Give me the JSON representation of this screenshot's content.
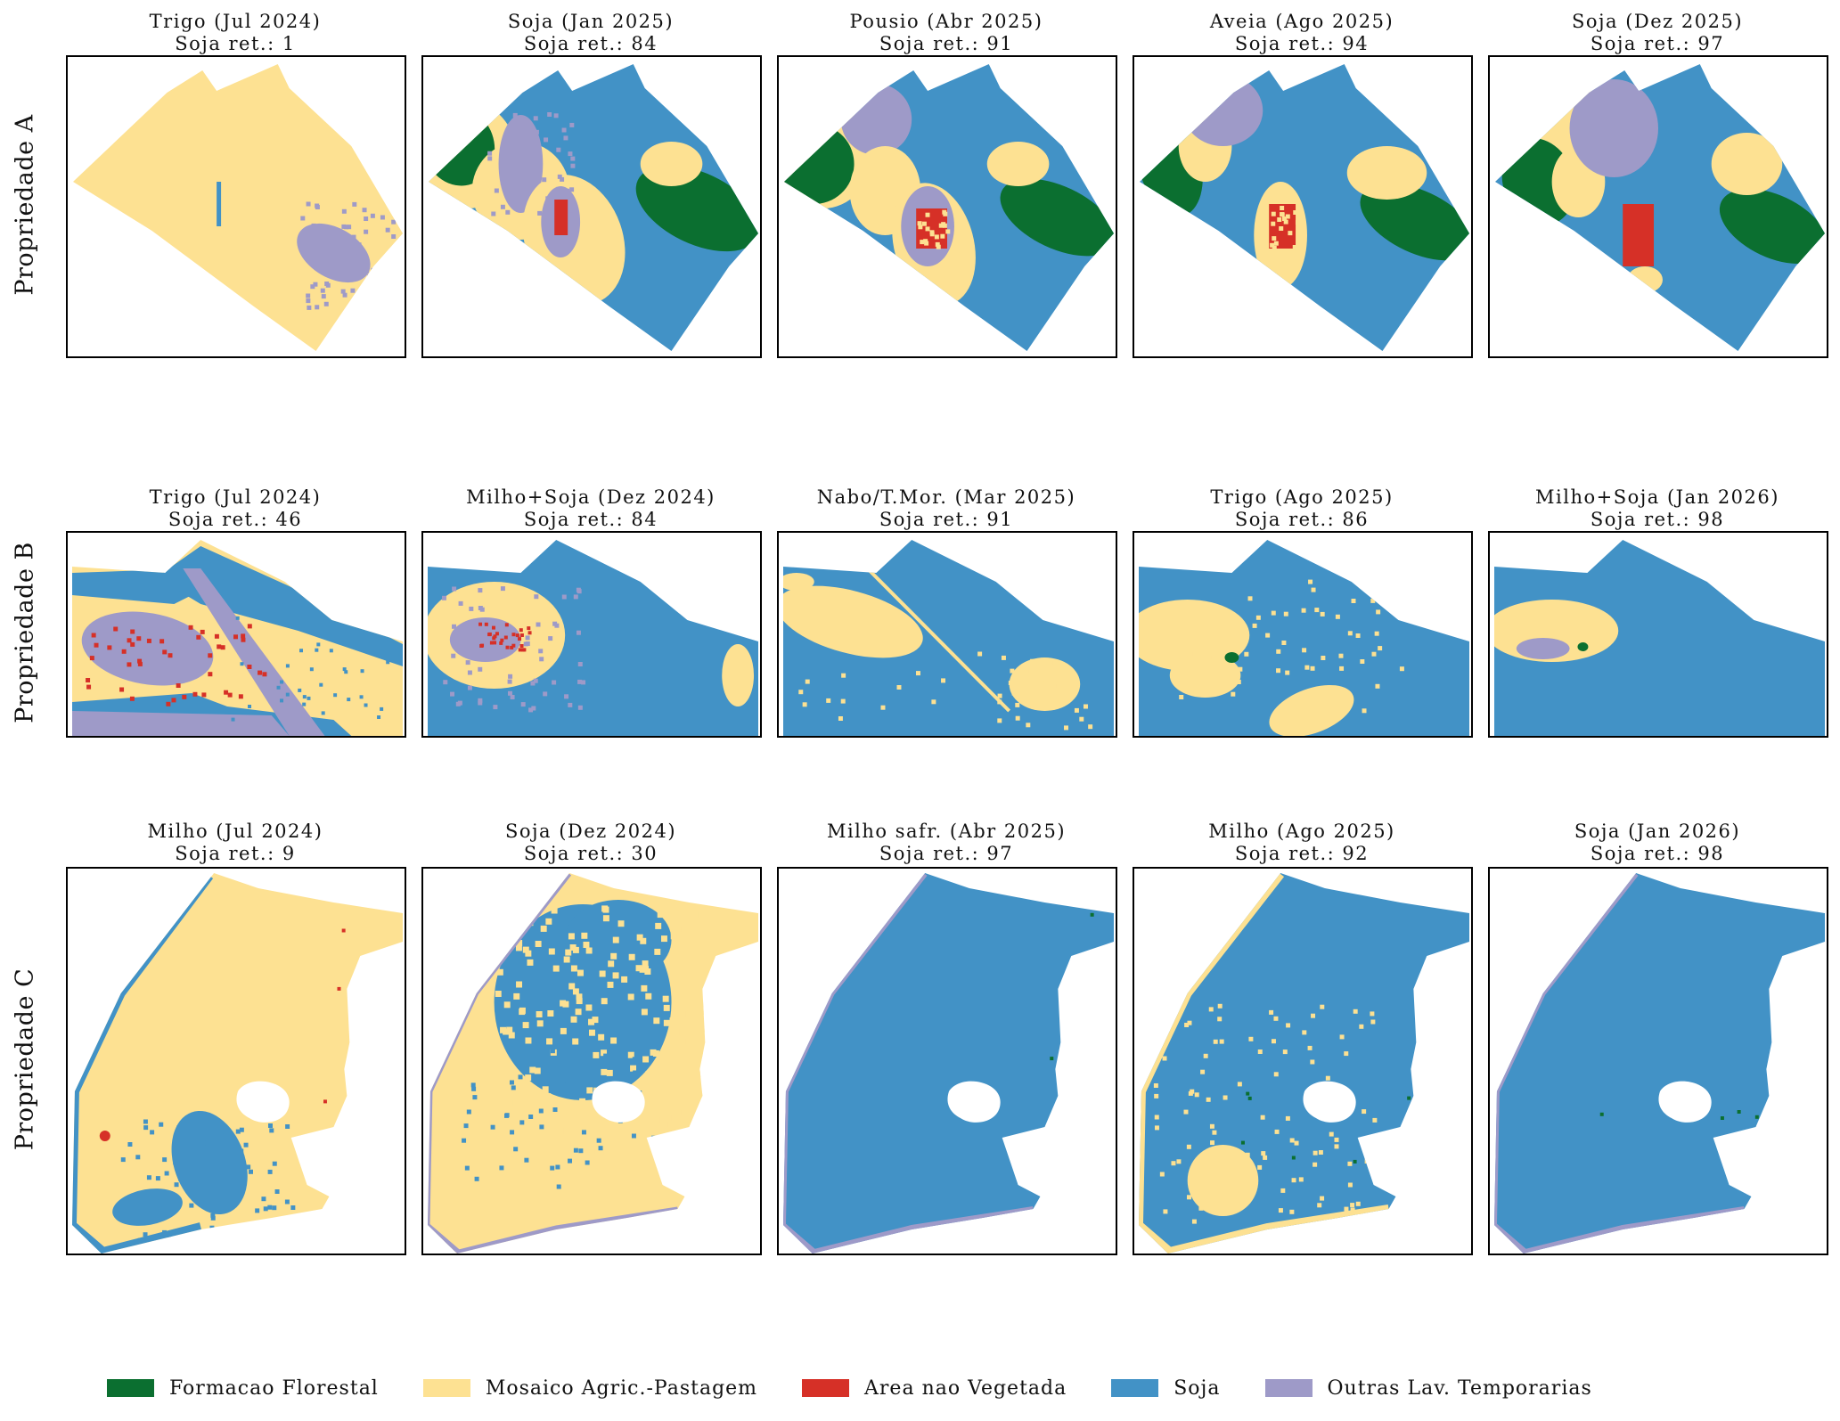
{
  "colors": {
    "floresta": "#0b6f30",
    "mosaico": "#fde192",
    "nao_vegetada": "#d63027",
    "soja": "#4292c6",
    "outras": "#9e9ac8"
  },
  "rows": [
    {
      "label": "Propriedade A",
      "shape": "A",
      "panels": [
        {
          "title": "Trigo (Jul 2024)",
          "sub": "Soja ret.: 1",
          "pattern": "A0"
        },
        {
          "title": "Soja (Jan 2025)",
          "sub": "Soja ret.: 84",
          "pattern": "A1"
        },
        {
          "title": "Pousio (Abr 2025)",
          "sub": "Soja ret.: 91",
          "pattern": "A2"
        },
        {
          "title": "Aveia (Ago 2025)",
          "sub": "Soja ret.: 94",
          "pattern": "A3"
        },
        {
          "title": "Soja (Dez 2025)",
          "sub": "Soja ret.: 97",
          "pattern": "A4"
        }
      ]
    },
    {
      "label": "Propriedade B",
      "shape": "B",
      "panels": [
        {
          "title": "Trigo (Jul 2024)",
          "sub": "Soja ret.: 46",
          "pattern": "B0"
        },
        {
          "title": "Milho+Soja (Dez 2024)",
          "sub": "Soja ret.: 84",
          "pattern": "B1"
        },
        {
          "title": "Nabo/T.Mor. (Mar 2025)",
          "sub": "Soja ret.: 91",
          "pattern": "B2"
        },
        {
          "title": "Trigo (Ago 2025)",
          "sub": "Soja ret.: 86",
          "pattern": "B3"
        },
        {
          "title": "Milho+Soja (Jan 2026)",
          "sub": "Soja ret.: 98",
          "pattern": "B4"
        }
      ]
    },
    {
      "label": "Propriedade C",
      "shape": "C",
      "panels": [
        {
          "title": "Milho (Jul 2024)",
          "sub": "Soja ret.: 9",
          "pattern": "C0"
        },
        {
          "title": "Soja (Dez 2024)",
          "sub": "Soja ret.: 30",
          "pattern": "C1"
        },
        {
          "title": "Milho safr. (Abr 2025)",
          "sub": "Soja ret.: 97",
          "pattern": "C2"
        },
        {
          "title": "Milho (Ago 2025)",
          "sub": "Soja ret.: 92",
          "pattern": "C3"
        },
        {
          "title": "Soja (Jan 2026)",
          "sub": "Soja ret.: 98",
          "pattern": "C4"
        }
      ]
    }
  ],
  "legend": [
    {
      "label": "Formacao Florestal",
      "key": "floresta"
    },
    {
      "label": "Mosaico Agric.-Pastagem",
      "key": "mosaico"
    },
    {
      "label": "Area nao Vegetada",
      "key": "nao_vegetada"
    },
    {
      "label": "Soja",
      "key": "soja"
    },
    {
      "label": "Outras Lav. Temporarias",
      "key": "outras"
    }
  ]
}
